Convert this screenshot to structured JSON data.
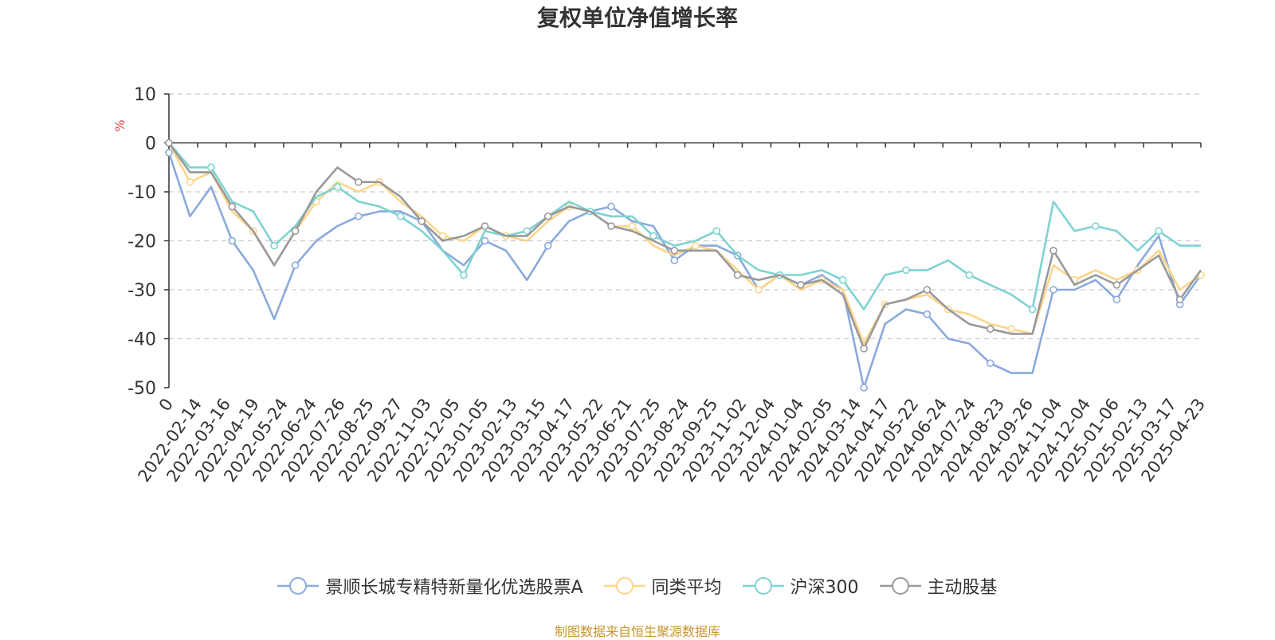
{
  "chart_data": {
    "type": "line",
    "title": "复权单位净值增长率",
    "ylabel": "%",
    "ylim": [
      -50,
      10
    ],
    "yticks": [
      10,
      0,
      -10,
      -20,
      -30,
      -40,
      -50
    ],
    "x_tick_labels": [
      "0",
      "2022-02-14",
      "2022-03-16",
      "2022-04-19",
      "2022-05-24",
      "2022-06-24",
      "2022-07-26",
      "2022-08-25",
      "2022-09-27",
      "2022-11-03",
      "2022-12-05",
      "2023-01-05",
      "2023-02-13",
      "2023-03-15",
      "2023-04-17",
      "2023-05-22",
      "2023-06-21",
      "2023-07-25",
      "2023-08-24",
      "2023-09-25",
      "2023-11-02",
      "2023-12-04",
      "2024-01-04",
      "2024-02-05",
      "2024-03-14",
      "2024-04-17",
      "2024-05-22",
      "2024-06-24",
      "2024-07-24",
      "2024-08-23",
      "2024-09-26",
      "2024-11-04",
      "2024-12-04",
      "2025-01-06",
      "2025-02-13",
      "2025-03-17",
      "2025-04-23"
    ],
    "grid": "horizontal-dashed",
    "legend_position": "bottom",
    "series": [
      {
        "name": "景顺长城专精特新量化优选股票A",
        "color": "#8aaadc",
        "values": [
          -2,
          -15,
          -9,
          -20,
          -26,
          -36,
          -25,
          -20,
          -17,
          -15,
          -14,
          -14,
          -16,
          -22,
          -25,
          -20,
          -22,
          -28,
          -21,
          -16,
          -14,
          -13,
          -16,
          -17,
          -24,
          -21,
          -21,
          -23,
          -30,
          -27,
          -29,
          -27,
          -30,
          -50,
          -37,
          -34,
          -35,
          -40,
          -41,
          -45,
          -47,
          -47,
          -30,
          -30,
          -28,
          -32,
          -25,
          -19,
          -33,
          -27
        ]
      },
      {
        "name": "同类平均",
        "color": "#fdd58a",
        "values": [
          0,
          -8,
          -6,
          -14,
          -18,
          -25,
          -18,
          -12,
          -8,
          -10,
          -8,
          -12,
          -15,
          -19,
          -20,
          -17,
          -19,
          -20,
          -16,
          -13,
          -14,
          -17,
          -17,
          -21,
          -23,
          -21,
          -22,
          -26,
          -30,
          -27,
          -30,
          -28,
          -30,
          -41,
          -33,
          -32,
          -31,
          -34,
          -35,
          -37,
          -38,
          -39,
          -25,
          -28,
          -26,
          -28,
          -26,
          -22,
          -30,
          -27
        ]
      },
      {
        "name": "沪深300",
        "color": "#7ed3d1",
        "values": [
          0,
          -5,
          -5,
          -12,
          -14,
          -21,
          -17,
          -11,
          -9,
          -12,
          -13,
          -15,
          -18,
          -22,
          -27,
          -18,
          -19,
          -18,
          -15,
          -12,
          -14,
          -15,
          -15,
          -19,
          -21,
          -20,
          -18,
          -23,
          -26,
          -27,
          -27,
          -26,
          -28,
          -34,
          -27,
          -26,
          -26,
          -24,
          -27,
          -29,
          -31,
          -34,
          -12,
          -18,
          -17,
          -18,
          -22,
          -18,
          -21,
          -21
        ]
      },
      {
        "name": "主动股基",
        "color": "#999999",
        "values": [
          0,
          -6,
          -6,
          -13,
          -18,
          -25,
          -18,
          -10,
          -5,
          -8,
          -8,
          -11,
          -16,
          -20,
          -19,
          -17,
          -19,
          -19,
          -15,
          -13,
          -14,
          -17,
          -18,
          -20,
          -22,
          -22,
          -22,
          -27,
          -28,
          -27,
          -29,
          -28,
          -31,
          -42,
          -33,
          -32,
          -30,
          -34,
          -37,
          -38,
          -39,
          -39,
          -22,
          -29,
          -27,
          -29,
          -26,
          -23,
          -32,
          -26
        ]
      }
    ]
  },
  "source_note": "制图数据来自恒生聚源数据库"
}
